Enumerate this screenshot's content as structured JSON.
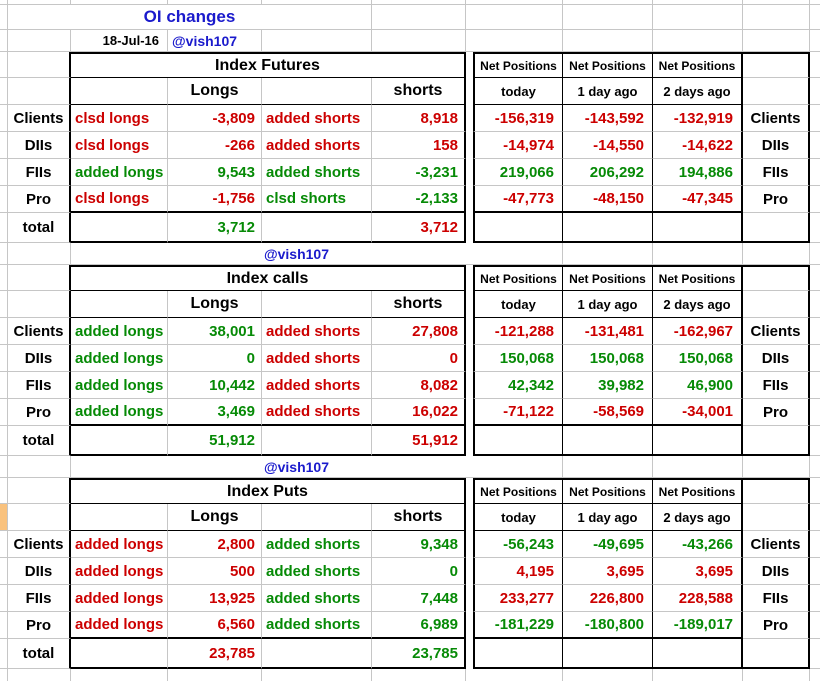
{
  "title": "OI changes",
  "date": "18-Jul-16",
  "handle": "@vish107",
  "colors": {
    "red": "#cc0000",
    "green": "#068a06",
    "blue": "#1a1acc",
    "highlight_cell": "#f9c27e",
    "gridline": "#c6c6c6"
  },
  "labels": {
    "longs": "Longs",
    "shorts": "shorts",
    "total": "total",
    "net_positions": "Net Positions",
    "today": "today",
    "one_day_ago": "1 day ago",
    "two_days_ago": "2 days ago"
  },
  "sections": [
    {
      "title": "Index Futures",
      "rows": [
        {
          "name": "Clients",
          "long_action": "clsd longs",
          "long_value": "-3,809",
          "long_color": "red",
          "short_action": "added shorts",
          "short_value": "8,918",
          "short_color": "red",
          "net_today": "-156,319",
          "net_1d": "-143,592",
          "net_2d": "-132,919",
          "net_color": "red"
        },
        {
          "name": "DIIs",
          "long_action": "clsd longs",
          "long_value": "-266",
          "long_color": "red",
          "short_action": "added shorts",
          "short_value": "158",
          "short_color": "red",
          "net_today": "-14,974",
          "net_1d": "-14,550",
          "net_2d": "-14,622",
          "net_color": "red"
        },
        {
          "name": "FIIs",
          "long_action": "added longs",
          "long_value": "9,543",
          "long_color": "green",
          "short_action": "added shorts",
          "short_value": "-3,231",
          "short_color": "green",
          "net_today": "219,066",
          "net_1d": "206,292",
          "net_2d": "194,886",
          "net_color": "green"
        },
        {
          "name": "Pro",
          "long_action": "clsd longs",
          "long_value": "-1,756",
          "long_color": "red",
          "short_action": "clsd shorts",
          "short_value": "-2,133",
          "short_color": "green",
          "net_today": "-47,773",
          "net_1d": "-48,150",
          "net_2d": "-47,345",
          "net_color": "red"
        }
      ],
      "total": {
        "longs": "3,712",
        "longs_color": "green",
        "shorts": "3,712",
        "shorts_color": "red"
      }
    },
    {
      "title": "Index calls",
      "rows": [
        {
          "name": "Clients",
          "long_action": "added longs",
          "long_value": "38,001",
          "long_color": "green",
          "short_action": "added shorts",
          "short_value": "27,808",
          "short_color": "red",
          "net_today": "-121,288",
          "net_1d": "-131,481",
          "net_2d": "-162,967",
          "net_color": "red"
        },
        {
          "name": "DIIs",
          "long_action": "added longs",
          "long_value": "0",
          "long_color": "green",
          "short_action": "added shorts",
          "short_value": "0",
          "short_color": "red",
          "net_today": "150,068",
          "net_1d": "150,068",
          "net_2d": "150,068",
          "net_color": "green"
        },
        {
          "name": "FIIs",
          "long_action": "added longs",
          "long_value": "10,442",
          "long_color": "green",
          "short_action": "added shorts",
          "short_value": "8,082",
          "short_color": "red",
          "net_today": "42,342",
          "net_1d": "39,982",
          "net_2d": "46,900",
          "net_color": "green"
        },
        {
          "name": "Pro",
          "long_action": "added longs",
          "long_value": "3,469",
          "long_color": "green",
          "short_action": "added shorts",
          "short_value": "16,022",
          "short_color": "red",
          "net_today": "-71,122",
          "net_1d": "-58,569",
          "net_2d": "-34,001",
          "net_color": "red"
        }
      ],
      "total": {
        "longs": "51,912",
        "longs_color": "green",
        "shorts": "51,912",
        "shorts_color": "red"
      }
    },
    {
      "title": "Index Puts",
      "rows": [
        {
          "name": "Clients",
          "long_action": "added longs",
          "long_value": "2,800",
          "long_color": "red",
          "short_action": "added shorts",
          "short_value": "9,348",
          "short_color": "green",
          "net_today": "-56,243",
          "net_1d": "-49,695",
          "net_2d": "-43,266",
          "net_color": "green"
        },
        {
          "name": "DIIs",
          "long_action": "added longs",
          "long_value": "500",
          "long_color": "red",
          "short_action": "added shorts",
          "short_value": "0",
          "short_color": "green",
          "net_today": "4,195",
          "net_1d": "3,695",
          "net_2d": "3,695",
          "net_color": "red"
        },
        {
          "name": "FIIs",
          "long_action": "added longs",
          "long_value": "13,925",
          "long_color": "red",
          "short_action": "added shorts",
          "short_value": "7,448",
          "short_color": "green",
          "net_today": "233,277",
          "net_1d": "226,800",
          "net_2d": "228,588",
          "net_color": "red"
        },
        {
          "name": "Pro",
          "long_action": "added longs",
          "long_value": "6,560",
          "long_color": "red",
          "short_action": "added shorts",
          "short_value": "6,989",
          "short_color": "green",
          "net_today": "-181,229",
          "net_1d": "-180,800",
          "net_2d": "-189,017",
          "net_color": "green"
        }
      ],
      "total": {
        "longs": "23,785",
        "longs_color": "red",
        "shorts": "23,785",
        "shorts_color": "green"
      }
    }
  ]
}
